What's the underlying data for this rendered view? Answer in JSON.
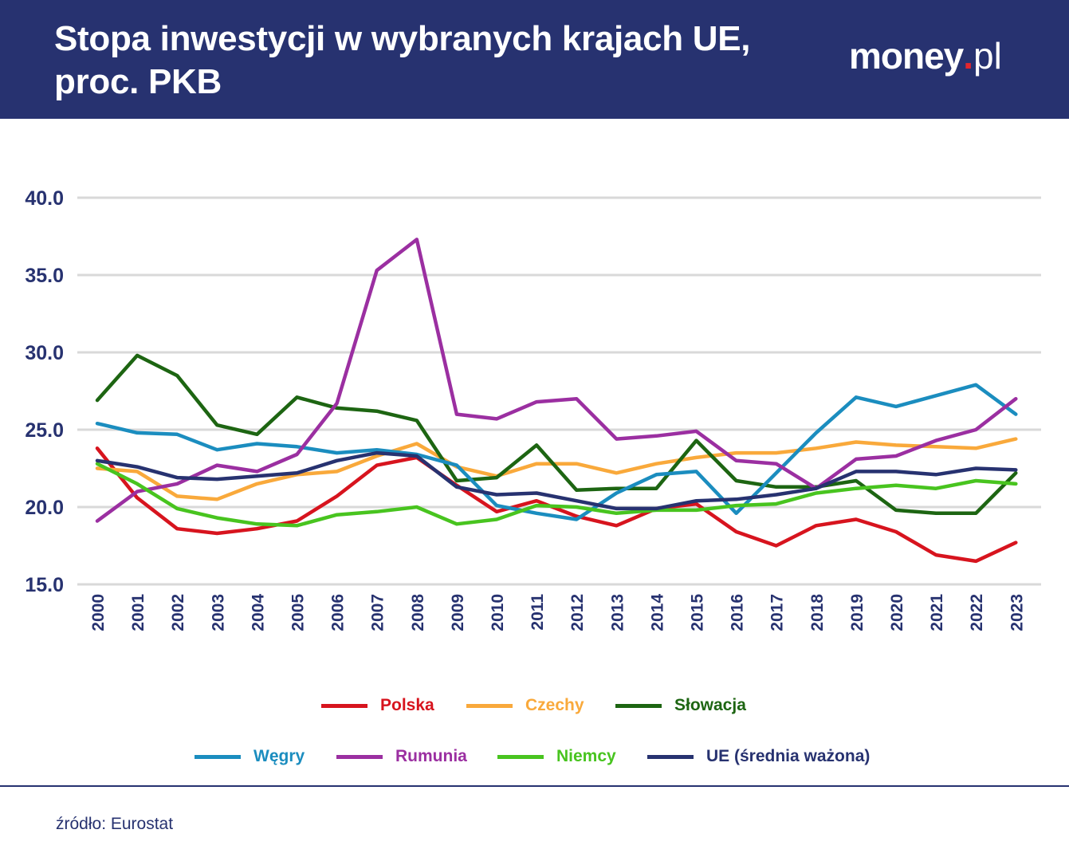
{
  "header": {
    "title_line1": "Stopa inwestycji w wybranych krajach UE,",
    "title_line2": "proc. PKB",
    "logo_brand": "money",
    "logo_dot": ".",
    "logo_tld": "pl"
  },
  "colors": {
    "header_bg": "#273270",
    "grid": "#d9d9d9",
    "axis_text": "#273270"
  },
  "chart_data": {
    "type": "line",
    "title": "Stopa inwestycji w wybranych krajach UE, proc. PKB",
    "xlabel": "",
    "ylabel": "",
    "ylim": [
      15,
      40
    ],
    "y_ticks": [
      "15.0",
      "20.0",
      "25.0",
      "30.0",
      "35.0",
      "40.0"
    ],
    "grid": true,
    "legend_position": "bottom",
    "x": [
      "2000",
      "2001",
      "2002",
      "2003",
      "2004",
      "2005",
      "2006",
      "2007",
      "2008",
      "2009",
      "2010",
      "2011",
      "2012",
      "2013",
      "2014",
      "2015",
      "2016",
      "2017",
      "2018",
      "2019",
      "2020",
      "2021",
      "2022",
      "2023"
    ],
    "series": [
      {
        "name": "Polska",
        "color": "#d7141e",
        "values": [
          23.8,
          20.6,
          18.6,
          18.3,
          18.6,
          19.1,
          20.7,
          22.7,
          23.2,
          21.4,
          19.7,
          20.4,
          19.4,
          18.8,
          19.9,
          20.2,
          18.4,
          17.5,
          18.8,
          19.2,
          18.4,
          16.9,
          16.5,
          17.7
        ]
      },
      {
        "name": "Czechy",
        "color": "#f9a93b",
        "values": [
          22.5,
          22.3,
          20.7,
          20.5,
          21.5,
          22.1,
          22.3,
          23.3,
          24.1,
          22.6,
          22.0,
          22.8,
          22.8,
          22.2,
          22.8,
          23.2,
          23.5,
          23.5,
          23.8,
          24.2,
          24.0,
          23.9,
          23.8,
          24.4
        ]
      },
      {
        "name": "Słowacja",
        "color": "#1d6512",
        "values": [
          26.9,
          29.8,
          28.5,
          25.3,
          24.7,
          27.1,
          26.4,
          26.2,
          25.6,
          21.7,
          21.9,
          24.0,
          21.1,
          21.2,
          21.2,
          24.3,
          21.7,
          21.3,
          21.3,
          21.7,
          19.8,
          19.6,
          19.6,
          22.2
        ]
      },
      {
        "name": "Węgry",
        "color": "#1b8dbf",
        "values": [
          25.4,
          24.8,
          24.7,
          23.7,
          24.1,
          23.9,
          23.5,
          23.7,
          23.4,
          22.7,
          20.1,
          19.6,
          19.2,
          20.9,
          22.1,
          22.3,
          19.6,
          22.2,
          24.8,
          27.1,
          26.5,
          27.2,
          27.9,
          26.0
        ]
      },
      {
        "name": "Rumunia",
        "color": "#9b2fa1",
        "values": [
          19.1,
          21.0,
          21.5,
          22.7,
          22.3,
          23.4,
          26.7,
          35.3,
          37.3,
          26.0,
          25.7,
          26.8,
          27.0,
          24.4,
          24.6,
          24.9,
          23.0,
          22.8,
          21.2,
          23.1,
          23.3,
          24.3,
          25.0,
          27.0
        ]
      },
      {
        "name": "Niemcy",
        "color": "#48c41f",
        "values": [
          22.8,
          21.5,
          19.9,
          19.3,
          18.9,
          18.8,
          19.5,
          19.7,
          20.0,
          18.9,
          19.2,
          20.1,
          20.0,
          19.6,
          19.8,
          19.8,
          20.1,
          20.2,
          20.9,
          21.2,
          21.4,
          21.2,
          21.7,
          21.5
        ]
      },
      {
        "name": "UE (średnia ważona)",
        "color": "#273270",
        "values": [
          23.0,
          22.6,
          21.9,
          21.8,
          22.0,
          22.2,
          23.0,
          23.5,
          23.3,
          21.3,
          20.8,
          20.9,
          20.4,
          19.9,
          19.9,
          20.4,
          20.5,
          20.8,
          21.2,
          22.3,
          22.3,
          22.1,
          22.5,
          22.4
        ]
      }
    ]
  },
  "footer": {
    "source": "źródło: Eurostat"
  }
}
